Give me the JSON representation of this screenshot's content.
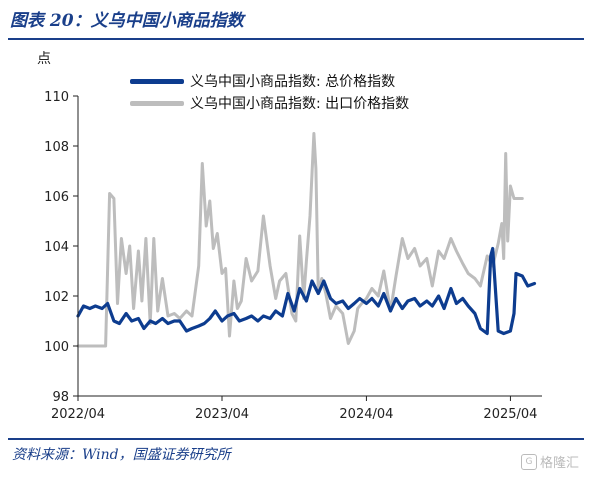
{
  "title": "图表 20：义乌中国小商品指数",
  "unit_label": "点",
  "source": "资料来源：Wind，国盛证券研究所",
  "watermark": {
    "text": "格隆汇",
    "logo": "G"
  },
  "colors": {
    "series_total": "#0d3c8f",
    "series_export": "#bdbdbd",
    "title": "#1a3f8a"
  },
  "chart_data": {
    "type": "line",
    "ylim": [
      98,
      110
    ],
    "yticks": [
      98,
      100,
      102,
      104,
      106,
      108,
      110
    ],
    "xlim": [
      "2022-04-01",
      "2025-06-20"
    ],
    "xticks": [
      {
        "date": "2022-04-01",
        "label": "2022/04"
      },
      {
        "date": "2023-04-01",
        "label": "2023/04"
      },
      {
        "date": "2024-04-01",
        "label": "2024/04"
      },
      {
        "date": "2025-04-01",
        "label": "2025/04"
      }
    ],
    "legend_position": "top-left",
    "series": [
      {
        "name": "义乌中国小商品指数: 总价格指数",
        "color": "#0d3c8f",
        "points": [
          [
            "2022-04-01",
            101.2
          ],
          [
            "2022-04-15",
            101.6
          ],
          [
            "2022-05-01",
            101.5
          ],
          [
            "2022-05-15",
            101.6
          ],
          [
            "2022-06-01",
            101.5
          ],
          [
            "2022-06-15",
            101.7
          ],
          [
            "2022-07-01",
            101.0
          ],
          [
            "2022-07-15",
            100.9
          ],
          [
            "2022-08-01",
            101.3
          ],
          [
            "2022-08-15",
            101.0
          ],
          [
            "2022-09-01",
            101.1
          ],
          [
            "2022-09-15",
            100.7
          ],
          [
            "2022-10-01",
            101.0
          ],
          [
            "2022-10-15",
            100.9
          ],
          [
            "2022-11-01",
            101.1
          ],
          [
            "2022-11-15",
            100.9
          ],
          [
            "2022-12-01",
            101.0
          ],
          [
            "2022-12-15",
            101.0
          ],
          [
            "2023-01-01",
            100.6
          ],
          [
            "2023-01-15",
            100.7
          ],
          [
            "2023-02-01",
            100.8
          ],
          [
            "2023-02-15",
            100.9
          ],
          [
            "2023-03-01",
            101.1
          ],
          [
            "2023-03-15",
            101.4
          ],
          [
            "2023-04-01",
            101.0
          ],
          [
            "2023-04-15",
            101.2
          ],
          [
            "2023-05-01",
            101.3
          ],
          [
            "2023-05-15",
            101.0
          ],
          [
            "2023-06-01",
            101.1
          ],
          [
            "2023-06-15",
            101.2
          ],
          [
            "2023-07-01",
            101.0
          ],
          [
            "2023-07-15",
            101.2
          ],
          [
            "2023-08-01",
            101.1
          ],
          [
            "2023-08-15",
            101.4
          ],
          [
            "2023-09-01",
            101.2
          ],
          [
            "2023-09-15",
            102.1
          ],
          [
            "2023-10-01",
            101.4
          ],
          [
            "2023-10-15",
            102.3
          ],
          [
            "2023-11-01",
            101.8
          ],
          [
            "2023-11-15",
            102.6
          ],
          [
            "2023-12-01",
            102.1
          ],
          [
            "2023-12-15",
            102.6
          ],
          [
            "2024-01-01",
            101.9
          ],
          [
            "2024-01-15",
            101.7
          ],
          [
            "2024-02-01",
            101.8
          ],
          [
            "2024-02-15",
            101.5
          ],
          [
            "2024-03-01",
            101.7
          ],
          [
            "2024-03-15",
            101.9
          ],
          [
            "2024-04-01",
            101.7
          ],
          [
            "2024-04-15",
            101.9
          ],
          [
            "2024-05-01",
            101.6
          ],
          [
            "2024-05-15",
            102.1
          ],
          [
            "2024-06-01",
            101.4
          ],
          [
            "2024-06-15",
            101.9
          ],
          [
            "2024-07-01",
            101.5
          ],
          [
            "2024-07-15",
            101.8
          ],
          [
            "2024-08-01",
            101.9
          ],
          [
            "2024-08-15",
            101.6
          ],
          [
            "2024-09-01",
            101.8
          ],
          [
            "2024-09-15",
            101.6
          ],
          [
            "2024-10-01",
            102.0
          ],
          [
            "2024-10-15",
            101.5
          ],
          [
            "2024-11-01",
            102.3
          ],
          [
            "2024-11-15",
            101.7
          ],
          [
            "2024-12-01",
            101.9
          ],
          [
            "2024-12-15",
            101.6
          ],
          [
            "2025-01-01",
            101.3
          ],
          [
            "2025-01-15",
            100.7
          ],
          [
            "2025-02-01",
            100.5
          ],
          [
            "2025-02-10",
            103.6
          ],
          [
            "2025-02-15",
            103.9
          ],
          [
            "2025-03-01",
            100.6
          ],
          [
            "2025-03-15",
            100.5
          ],
          [
            "2025-04-01",
            100.6
          ],
          [
            "2025-04-10",
            101.3
          ],
          [
            "2025-04-15",
            102.9
          ],
          [
            "2025-05-01",
            102.8
          ],
          [
            "2025-05-15",
            102.4
          ],
          [
            "2025-06-01",
            102.5
          ]
        ]
      },
      {
        "name": "义乌中国小商品指数: 出口价格指数",
        "color": "#bdbdbd",
        "points": [
          [
            "2022-04-01",
            100.0
          ],
          [
            "2022-05-01",
            100.0
          ],
          [
            "2022-06-01",
            100.0
          ],
          [
            "2022-06-10",
            100.0
          ],
          [
            "2022-06-20",
            106.1
          ],
          [
            "2022-07-01",
            105.9
          ],
          [
            "2022-07-10",
            101.7
          ],
          [
            "2022-07-20",
            104.3
          ],
          [
            "2022-08-01",
            102.9
          ],
          [
            "2022-08-10",
            104.0
          ],
          [
            "2022-08-20",
            101.5
          ],
          [
            "2022-09-01",
            103.8
          ],
          [
            "2022-09-10",
            101.8
          ],
          [
            "2022-09-20",
            104.3
          ],
          [
            "2022-10-01",
            100.9
          ],
          [
            "2022-10-10",
            104.3
          ],
          [
            "2022-10-20",
            101.4
          ],
          [
            "2022-11-01",
            102.7
          ],
          [
            "2022-11-15",
            101.2
          ],
          [
            "2022-12-01",
            101.3
          ],
          [
            "2022-12-15",
            101.1
          ],
          [
            "2023-01-01",
            101.4
          ],
          [
            "2023-01-15",
            101.2
          ],
          [
            "2023-02-01",
            103.2
          ],
          [
            "2023-02-10",
            107.3
          ],
          [
            "2023-02-20",
            104.8
          ],
          [
            "2023-03-01",
            105.8
          ],
          [
            "2023-03-10",
            103.9
          ],
          [
            "2023-03-20",
            104.5
          ],
          [
            "2023-04-01",
            102.9
          ],
          [
            "2023-04-10",
            103.1
          ],
          [
            "2023-04-20",
            100.4
          ],
          [
            "2023-05-01",
            102.6
          ],
          [
            "2023-05-10",
            101.5
          ],
          [
            "2023-05-20",
            101.8
          ],
          [
            "2023-06-01",
            103.5
          ],
          [
            "2023-06-15",
            102.6
          ],
          [
            "2023-07-01",
            103.0
          ],
          [
            "2023-07-15",
            105.2
          ],
          [
            "2023-08-01",
            103.2
          ],
          [
            "2023-08-15",
            101.9
          ],
          [
            "2023-08-25",
            102.6
          ],
          [
            "2023-09-10",
            102.9
          ],
          [
            "2023-09-25",
            101.3
          ],
          [
            "2023-10-05",
            101.0
          ],
          [
            "2023-10-15",
            104.4
          ],
          [
            "2023-10-25",
            101.9
          ],
          [
            "2023-11-01",
            103.4
          ],
          [
            "2023-11-10",
            105.2
          ],
          [
            "2023-11-20",
            108.5
          ],
          [
            "2023-11-25",
            107.1
          ],
          [
            "2023-12-01",
            102.1
          ],
          [
            "2023-12-10",
            102.7
          ],
          [
            "2023-12-20",
            102.1
          ],
          [
            "2024-01-01",
            101.1
          ],
          [
            "2024-01-15",
            101.6
          ],
          [
            "2024-02-01",
            101.3
          ],
          [
            "2024-02-15",
            100.1
          ],
          [
            "2024-03-01",
            100.6
          ],
          [
            "2024-03-10",
            101.5
          ],
          [
            "2024-03-20",
            101.7
          ],
          [
            "2024-04-01",
            101.9
          ],
          [
            "2024-04-15",
            102.3
          ],
          [
            "2024-05-01",
            102.0
          ],
          [
            "2024-05-15",
            103.0
          ],
          [
            "2024-06-01",
            101.4
          ],
          [
            "2024-06-15",
            102.8
          ],
          [
            "2024-07-01",
            104.3
          ],
          [
            "2024-07-15",
            103.5
          ],
          [
            "2024-08-01",
            103.9
          ],
          [
            "2024-08-15",
            103.2
          ],
          [
            "2024-09-01",
            103.5
          ],
          [
            "2024-09-15",
            102.4
          ],
          [
            "2024-10-01",
            103.8
          ],
          [
            "2024-10-15",
            103.5
          ],
          [
            "2024-11-01",
            104.3
          ],
          [
            "2024-11-15",
            103.8
          ],
          [
            "2024-12-01",
            103.3
          ],
          [
            "2024-12-15",
            102.9
          ],
          [
            "2025-01-01",
            102.7
          ],
          [
            "2025-01-15",
            102.4
          ],
          [
            "2025-02-01",
            103.6
          ],
          [
            "2025-02-15",
            103.2
          ],
          [
            "2025-03-01",
            104.1
          ],
          [
            "2025-03-10",
            104.9
          ],
          [
            "2025-03-15",
            103.5
          ],
          [
            "2025-03-20",
            107.7
          ],
          [
            "2025-03-25",
            104.2
          ],
          [
            "2025-04-01",
            106.4
          ],
          [
            "2025-04-10",
            105.9
          ],
          [
            "2025-04-20",
            105.9
          ],
          [
            "2025-05-01",
            105.9
          ]
        ]
      }
    ]
  }
}
